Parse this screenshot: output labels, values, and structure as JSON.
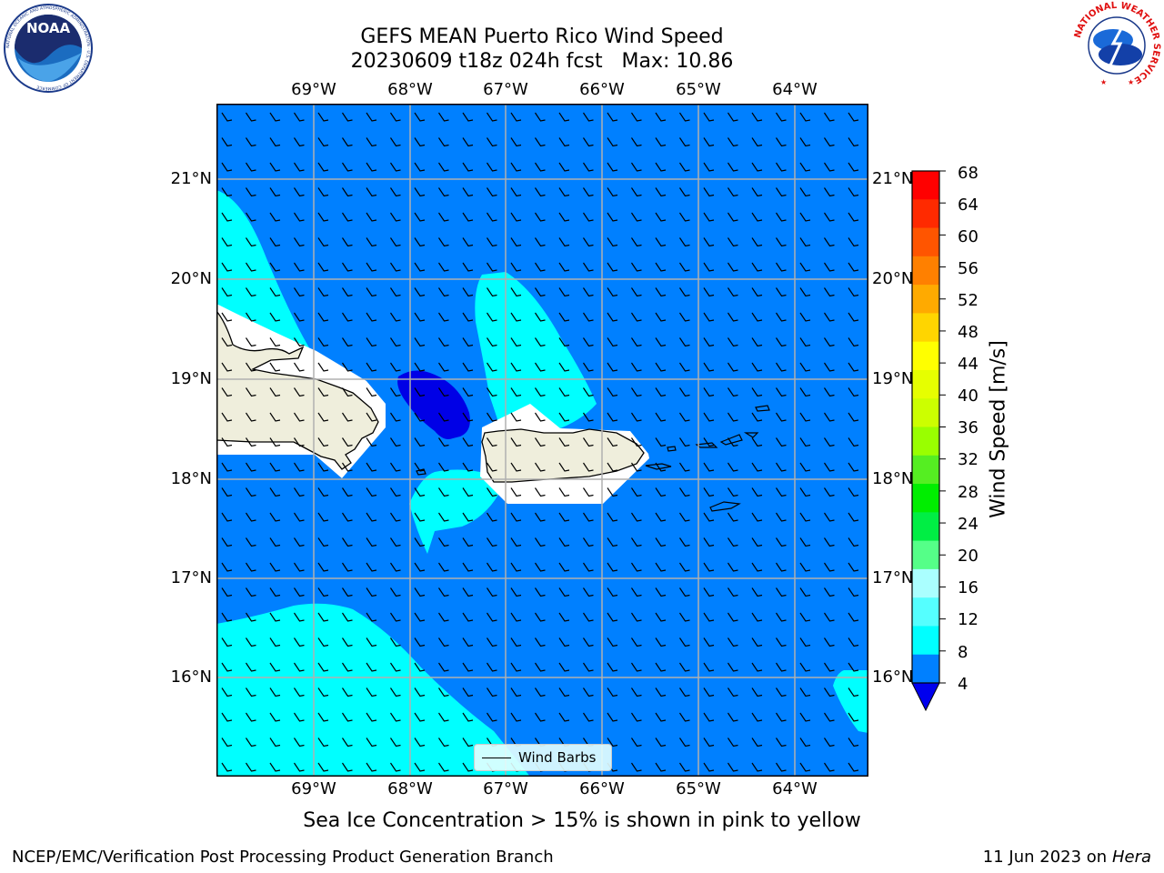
{
  "header": {
    "title_line1": "GEFS MEAN Puerto Rico Wind Speed",
    "title_line2": "20230609 t18z 024h fcst   Max: 10.86"
  },
  "logos": {
    "left": {
      "name": "NOAA",
      "text": "NOAA",
      "ring_text": "NATIONAL OCEANIC AND ATMOSPHERIC ADMINISTRATION · U.S. DEPARTMENT OF COMMERCE"
    },
    "right": {
      "name": "National Weather Service",
      "ring_text": "NATIONAL WEATHER SERVICE"
    }
  },
  "map": {
    "lon_labels": [
      "69°W",
      "68°W",
      "67°W",
      "66°W",
      "65°W",
      "64°W"
    ],
    "lat_labels": [
      "21°N",
      "20°N",
      "19°N",
      "18°N",
      "17°N",
      "16°N"
    ],
    "legend_label": "Wind Barbs",
    "colors": {
      "ocean_4_8": "#0080ff",
      "band_8_12": "#00ffff",
      "below_4": "#0000e6",
      "land": "#efeedc",
      "masked": "#ffffff",
      "grid": "#b0b0b0"
    }
  },
  "colorbar": {
    "label": "Wind Speed [m/s]",
    "ticks": [
      "68",
      "64",
      "60",
      "56",
      "52",
      "48",
      "44",
      "40",
      "36",
      "32",
      "28",
      "24",
      "20",
      "16",
      "12",
      "8",
      "4"
    ],
    "colors": [
      "#ff0000",
      "#ff2a00",
      "#ff5500",
      "#ff8000",
      "#ffaa00",
      "#ffd500",
      "#ffff00",
      "#e6ff00",
      "#ccff00",
      "#99ff00",
      "#55ee22",
      "#00ee00",
      "#00ee44",
      "#55ff88",
      "#aaffff",
      "#55ffff",
      "#00ffff",
      "#0080ff"
    ],
    "under_color": "#0000ee"
  },
  "footer": {
    "note": "Sea Ice Concentration > 15% is shown in pink to yellow",
    "left": "NCEP/EMC/Verification Post Processing Product Generation Branch",
    "right_date": "11 Jun 2023 on",
    "right_machine": "Hera"
  }
}
